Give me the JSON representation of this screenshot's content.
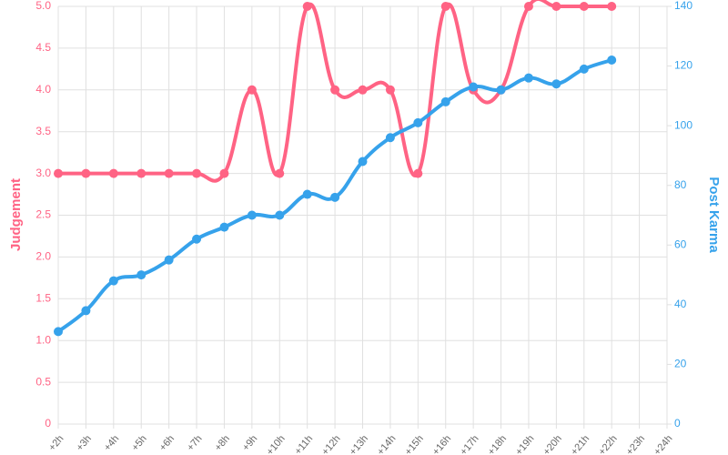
{
  "chart_data": {
    "type": "line",
    "categories": [
      "+2h",
      "+3h",
      "+4h",
      "+5h",
      "+6h",
      "+7h",
      "+8h",
      "+9h",
      "+10h",
      "+11h",
      "+12h",
      "+13h",
      "+14h",
      "+15h",
      "+16h",
      "+17h",
      "+18h",
      "+19h",
      "+20h",
      "+21h",
      "+22h",
      "+23h",
      "+24h"
    ],
    "series": [
      {
        "name": "Judgement",
        "color": "#ff6384",
        "axis": "y",
        "values": [
          3,
          3,
          3,
          3,
          3,
          3,
          3,
          4,
          3,
          5,
          4,
          4,
          4,
          3,
          5,
          4,
          4,
          5,
          5,
          5,
          5,
          null,
          null
        ]
      },
      {
        "name": "Post Karma",
        "color": "#36a2eb",
        "axis": "y2",
        "values": [
          31,
          38,
          48,
          50,
          55,
          62,
          66,
          70,
          70,
          77,
          76,
          88,
          96,
          101,
          108,
          113,
          112,
          116,
          114,
          119,
          122,
          null,
          null
        ]
      }
    ],
    "ylabel": "Judgement",
    "y2label": "Post Karma",
    "ylim": [
      0,
      5
    ],
    "yticks": [
      0,
      0.5,
      {
        "value": 1,
        "label": "1.0"
      },
      1.5,
      {
        "value": 2,
        "label": "2.0"
      },
      2.5,
      {
        "value": 3,
        "label": "3.0"
      },
      3.5,
      {
        "value": 4,
        "label": "4.0"
      },
      4.5,
      {
        "value": 5,
        "label": "5.0"
      }
    ],
    "y2lim": [
      0,
      140
    ],
    "y2ticks": [
      0,
      20,
      40,
      60,
      80,
      100,
      120,
      140
    ],
    "grid": true
  }
}
